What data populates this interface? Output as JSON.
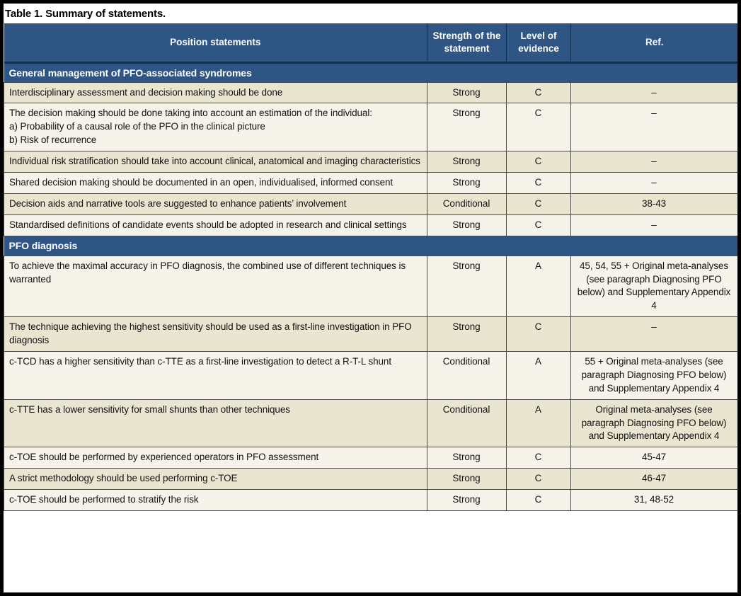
{
  "title": "Table 1. Summary of statements.",
  "columns": {
    "statement": "Position statements",
    "strength": "Strength of the statement",
    "level": "Level of evidence",
    "ref": "Ref."
  },
  "sections": [
    {
      "header": "General management of PFO-associated syndromes",
      "rows": [
        {
          "statement": "Interdisciplinary assessment and decision making should be done",
          "strength": "Strong",
          "level": "C",
          "ref": "–"
        },
        {
          "statement": [
            "The decision making should be done taking into account an estimation of the individual:",
            "a) Probability of a causal role of the PFO in the clinical picture",
            "b) Risk of recurrence"
          ],
          "strength": "Strong",
          "level": "C",
          "ref": "–"
        },
        {
          "statement": "Individual risk stratification should take into account clinical, anatomical and imaging characteristics",
          "strength": "Strong",
          "level": "C",
          "ref": "–"
        },
        {
          "statement": "Shared decision making should be documented in an open, individualised, informed consent",
          "strength": "Strong",
          "level": "C",
          "ref": "–"
        },
        {
          "statement": "Decision aids and narrative tools are suggested to enhance patients’ involvement",
          "strength": "Conditional",
          "level": "C",
          "ref": "38-43"
        },
        {
          "statement": "Standardised definitions of candidate events should be adopted in research and clinical settings",
          "strength": "Strong",
          "level": "C",
          "ref": "–"
        }
      ]
    },
    {
      "header": "PFO diagnosis",
      "rows": [
        {
          "statement": "To achieve the maximal accuracy in PFO diagnosis, the combined use of different techniques is warranted",
          "strength": "Strong",
          "level": "A",
          "ref": "45, 54, 55 + Original meta-analyses (see paragraph Diagnosing PFO below) and Supplementary Appendix 4"
        },
        {
          "statement": "The technique achieving the highest sensitivity should be used as a first-line investigation in PFO diagnosis",
          "strength": "Strong",
          "level": "C",
          "ref": "–"
        },
        {
          "statement": "c-TCD has a higher sensitivity than c-TTE as a first-line investigation to detect a R-T-L shunt",
          "strength": "Conditional",
          "level": "A",
          "ref": "55 + Original meta-analyses (see paragraph Diagnosing PFO below) and Supplementary Appendix 4"
        },
        {
          "statement": "c-TTE has a lower sensitivity for small shunts than other techniques",
          "strength": "Conditional",
          "level": "A",
          "ref": "Original meta-analyses (see paragraph Diagnosing PFO below) and Supplementary Appendix 4"
        },
        {
          "statement": "c-TOE should be performed by experienced operators in PFO assessment",
          "strength": "Strong",
          "level": "C",
          "ref": "45-47"
        },
        {
          "statement": "A strict methodology should be used performing c-TOE",
          "strength": "Strong",
          "level": "C",
          "ref": "46-47"
        },
        {
          "statement": "c-TOE should be performed to stratify the risk",
          "strength": "Strong",
          "level": "C",
          "ref": "31, 48-52"
        }
      ]
    }
  ],
  "colors": {
    "header_blue": "#2e5584",
    "navy_line": "#14304f",
    "row_dark": "#e9e5d1",
    "row_light": "#f6f4ea",
    "grid_line": "#4a4a4a",
    "frame_black": "#000000",
    "header_text": "#ffffff",
    "body_text": "#121212"
  }
}
